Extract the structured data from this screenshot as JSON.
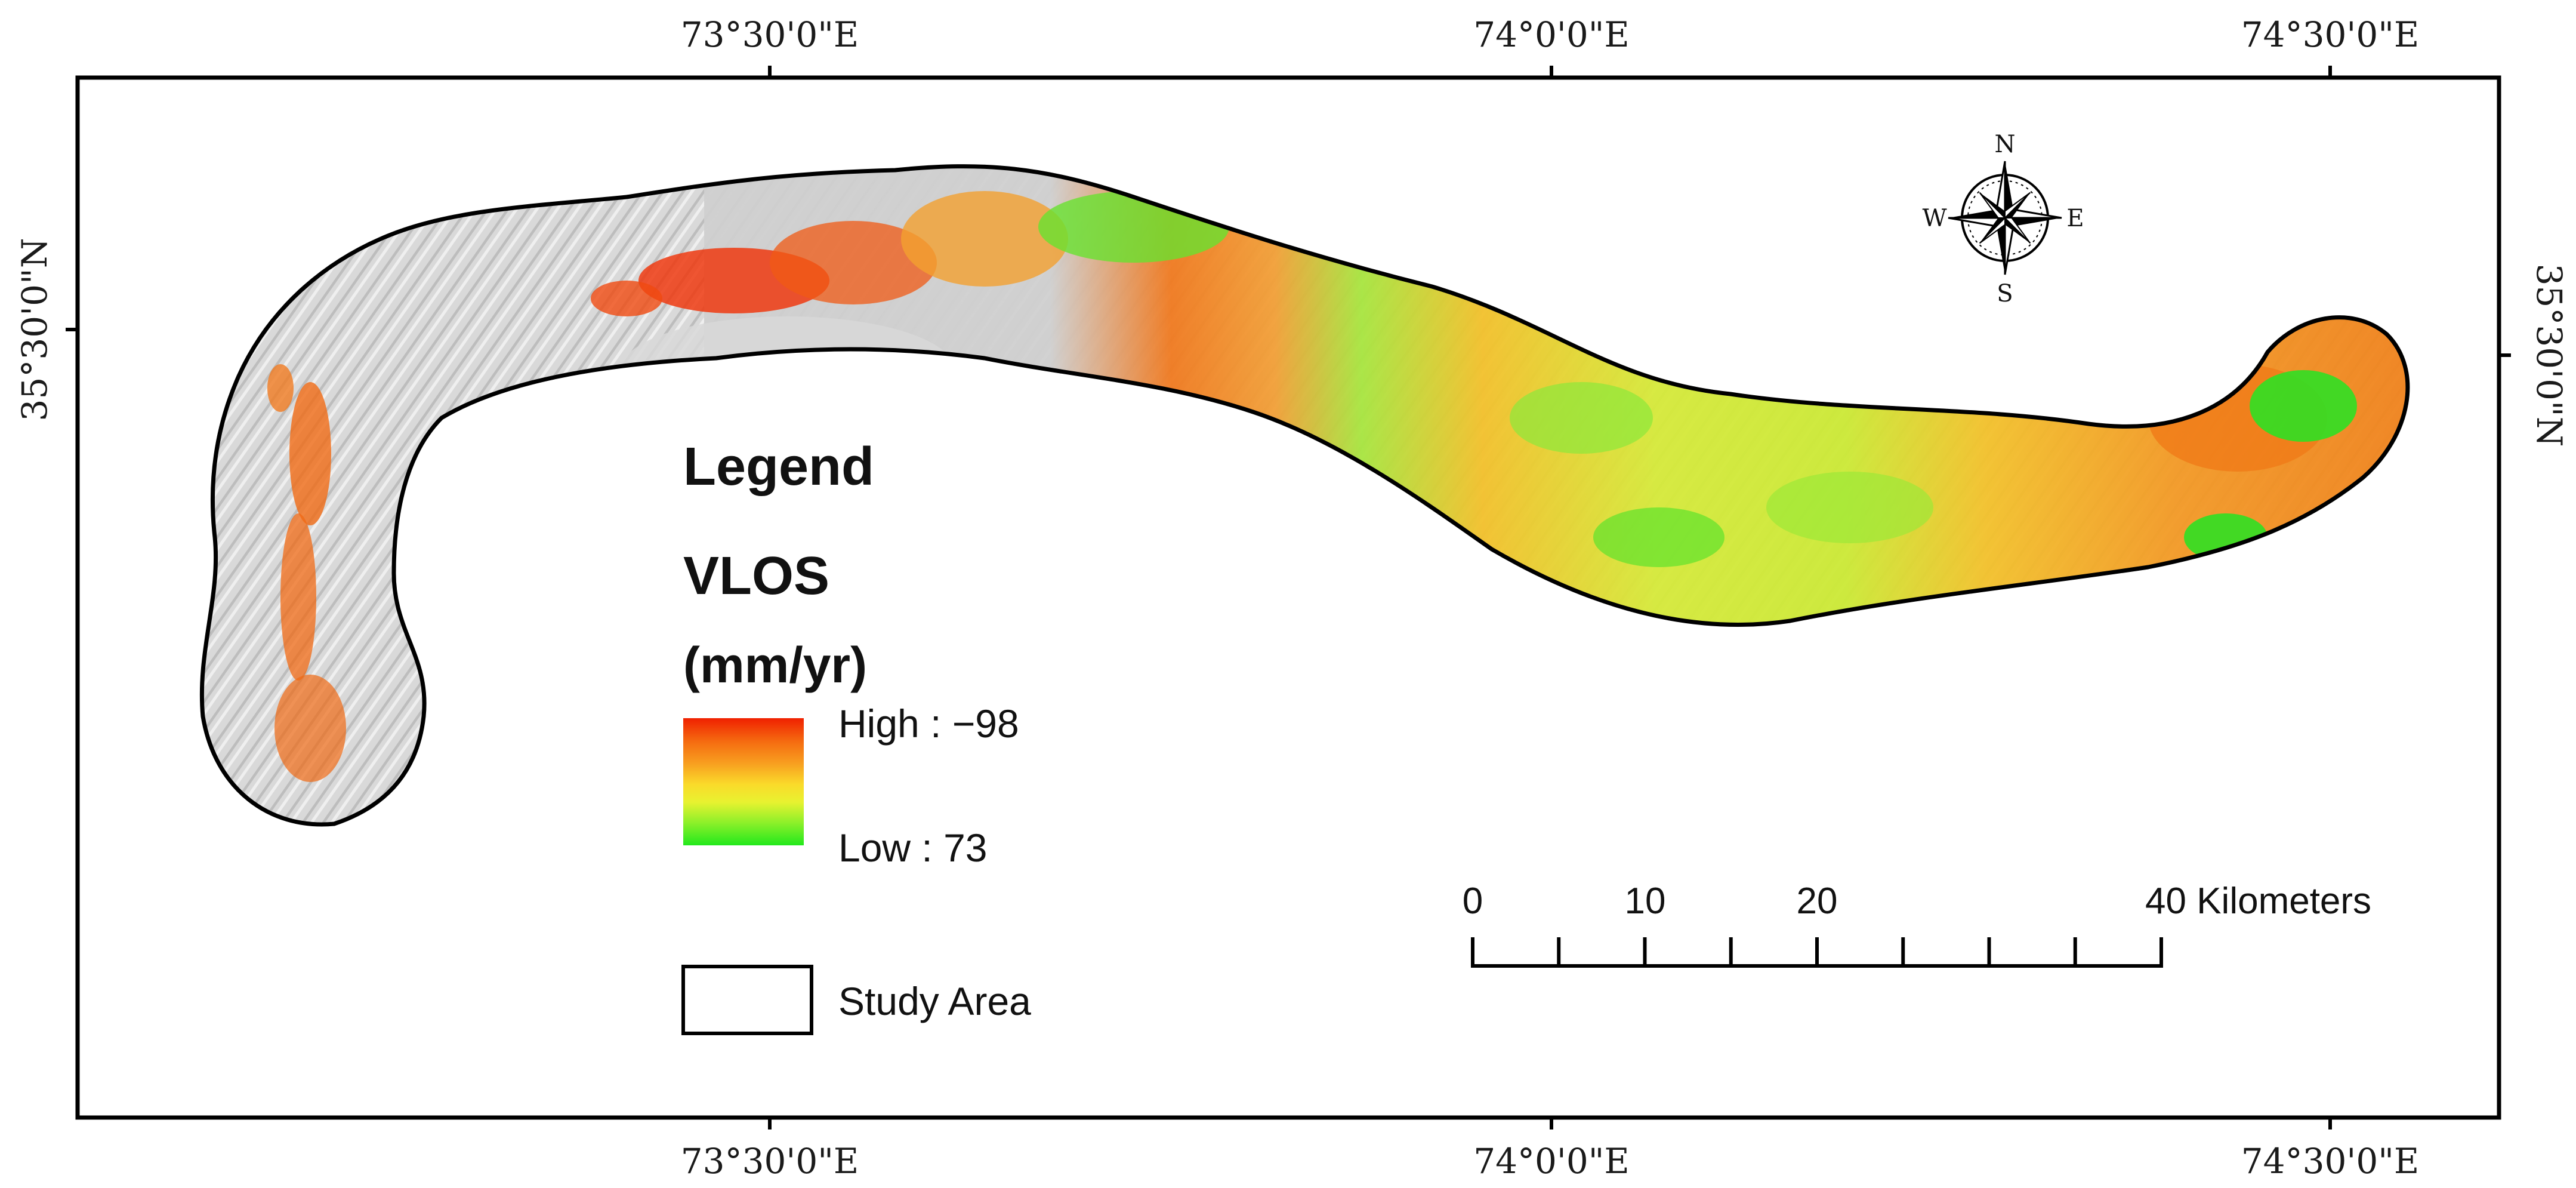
{
  "graticule": {
    "top_labels": [
      "73°30'0\"E",
      "74°0'0\"E",
      "74°30'0\"E"
    ],
    "bottom_labels": [
      "73°30'0\"E",
      "74°0'0\"E",
      "74°30'0\"E"
    ],
    "left_label": "35°30'0\"N",
    "right_label": "35°30'0\"N"
  },
  "legend": {
    "title": "Legend",
    "layer": "VLOS",
    "unit": "(mm/yr)",
    "high_label": "High : −98",
    "low_label": "Low : 73",
    "study_area_label": "Study Area",
    "ramp_colors": [
      "#f02000",
      "#f56a10",
      "#f8a020",
      "#fada2a",
      "#e8f230",
      "#8ef02a",
      "#22e81c"
    ]
  },
  "scale_bar": {
    "labels": [
      "0",
      "10",
      "20",
      "40 Kilometers"
    ],
    "ticks_km": [
      0,
      5,
      10,
      15,
      20,
      25,
      30,
      35,
      40
    ]
  },
  "north_arrow": {
    "n": "N",
    "s": "S",
    "e": "E",
    "w": "W"
  },
  "colors": {
    "frame": "#000000",
    "hillshade": "#d7d7d7",
    "outline": "#000000"
  }
}
